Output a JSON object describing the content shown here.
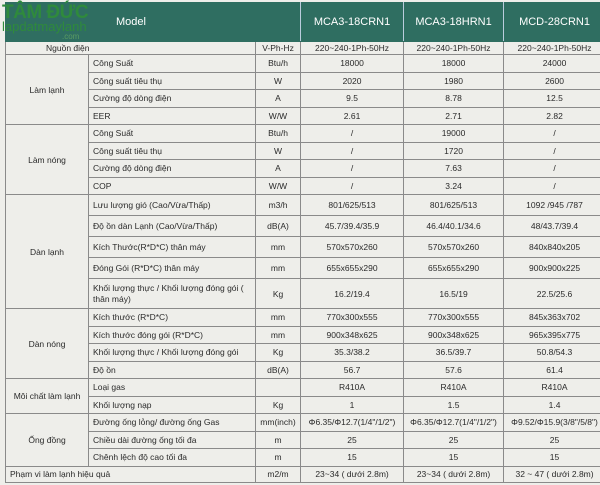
{
  "logo": {
    "title": "TÂM ĐỨC",
    "subtitle": "lapdatmaylanh",
    ".com": ".com"
  },
  "header": {
    "model_label": "Model",
    "models": [
      "MCA3-18CRN1",
      "MCA3-18HRN1",
      "MCD-28CRN1"
    ]
  },
  "power": {
    "label": "Nguồn điện",
    "unit": "V-Ph-Hz",
    "values": [
      "220~240-1Ph-50Hz",
      "220~240-1Ph-50Hz",
      "220~240-1Ph-50Hz"
    ]
  },
  "groups": [
    {
      "name": "Làm lạnh",
      "rows": [
        {
          "item": "Công Suất",
          "unit": "Btu/h",
          "values": [
            "18000",
            "18000",
            "24000"
          ]
        },
        {
          "item": "Công suất tiêu thụ",
          "unit": "W",
          "values": [
            "2020",
            "1980",
            "2600"
          ]
        },
        {
          "item": "Cường độ dòng điện",
          "unit": "A",
          "values": [
            "9.5",
            "8.78",
            "12.5"
          ]
        },
        {
          "item": "EER",
          "unit": "W/W",
          "values": [
            "2.61",
            "2.71",
            "2.82"
          ]
        }
      ]
    },
    {
      "name": "Làm nóng",
      "rows": [
        {
          "item": "Công Suất",
          "unit": "Btu/h",
          "values": [
            "/",
            "19000",
            "/"
          ]
        },
        {
          "item": "Công suất tiêu thụ",
          "unit": "W",
          "values": [
            "/",
            "1720",
            "/"
          ]
        },
        {
          "item": "Cường độ  dòng điện",
          "unit": "A",
          "values": [
            "/",
            "7.63",
            "/"
          ]
        },
        {
          "item": "COP",
          "unit": "W/W",
          "values": [
            "/",
            "3.24",
            "/"
          ]
        }
      ]
    },
    {
      "name": "Dàn lạnh",
      "rows": [
        {
          "item": "Lưu lượng gió (Cao/Vừa/Thấp)",
          "unit": "m3/h",
          "values": [
            "801/625/513",
            "801/625/513",
            "1092 /945 /787"
          ]
        },
        {
          "item": "Độ ồn dàn Lạnh (Cao/Vừa/Thấp)",
          "unit": "dB(A)",
          "values": [
            "45.7/39.4/35.9",
            "46.4/40.1/34.6",
            "48/43.7/39.4"
          ]
        },
        {
          "item": "Kích Thước(R*D*C) thân máy",
          "unit": "mm",
          "values": [
            "570x570x260",
            "570x570x260",
            "840x840x205"
          ]
        },
        {
          "item": "Đóng Gói  (R*D*C) thân máy",
          "unit": "mm",
          "values": [
            "655x655x290",
            "655x655x290",
            "900x900x225"
          ]
        },
        {
          "item": "Khối lượng thực / Khối lượng đóng gói ( thân máy)",
          "unit": "Kg",
          "values": [
            "16.2/19.4",
            "16.5/19",
            "22.5/25.6"
          ],
          "tall": true
        }
      ]
    },
    {
      "name": "Dàn nóng",
      "rows": [
        {
          "item": "Kích thước (R*D*C)",
          "unit": "mm",
          "values": [
            "770x300x555",
            "770x300x555",
            "845x363x702"
          ]
        },
        {
          "item": "Kích thước đóng gói  (R*D*C)",
          "unit": "mm",
          "values": [
            "900x348x625",
            "900x348x625",
            "965x395x775"
          ]
        },
        {
          "item": "Khối lượng thực / Khối lượng đóng gói",
          "unit": "Kg",
          "values": [
            "35.3/38.2",
            "36.5/39.7",
            "50.8/54.3"
          ]
        },
        {
          "item": "Độ ồn",
          "unit": "dB(A)",
          "values": [
            "56.7",
            "57.6",
            "61.4"
          ]
        }
      ]
    },
    {
      "name": "Môi chất làm lạnh",
      "rows": [
        {
          "item": "Loại gas",
          "unit": "",
          "values": [
            "R410A",
            "R410A",
            "R410A"
          ]
        },
        {
          "item": "Khối lượng nạp",
          "unit": "Kg",
          "values": [
            "1",
            "1.5",
            "1.4"
          ]
        }
      ]
    },
    {
      "name": "Ống đồng",
      "rows": [
        {
          "item": "Đường ống lỏng/ đường ống Gas",
          "unit": "mm(inch)",
          "values": [
            "Φ6.35/Φ12.7(1/4\"/1/2\")",
            "Φ6.35/Φ12.7(1/4\"/1/2\")",
            "Φ9.52/Φ15.9(3/8\"/5/8\")"
          ]
        },
        {
          "item": "Chiều dài đường ống tối đa",
          "unit": "m",
          "values": [
            "25",
            "25",
            "25"
          ]
        },
        {
          "item": "Chênh lệch độ cao tối đa",
          "unit": "m",
          "values": [
            "15",
            "15",
            "15"
          ]
        }
      ]
    }
  ],
  "range": {
    "label": "Phạm vi làm lạnh hiệu quả",
    "unit": "m2/m",
    "values": [
      "23~34 ( dưới 2.8m)",
      "23~34 ( dưới 2.8m)",
      "32 ~ 47 ( dưới 2.8m)"
    ]
  },
  "colors": {
    "header": "#2f6e61",
    "logo": "#2f8a3c"
  }
}
